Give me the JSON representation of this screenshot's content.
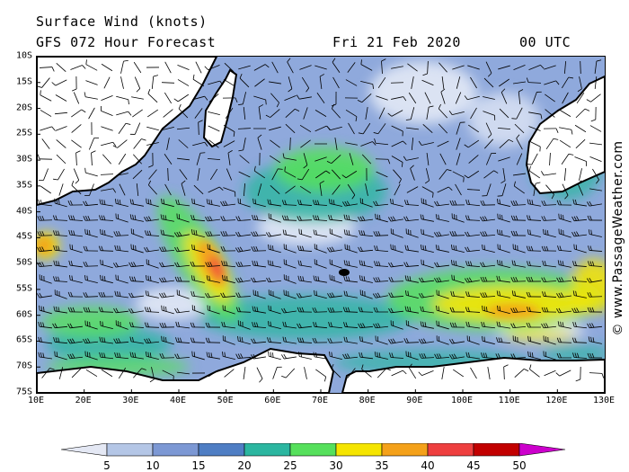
{
  "header": {
    "title": "Surface Wind (knots)",
    "model": "GFS 072 Hour Forecast",
    "date": "Fri 21 Feb 2020",
    "time": "00 UTC"
  },
  "map": {
    "lat_labels": [
      "10S",
      "15S",
      "20S",
      "25S",
      "30S",
      "35S",
      "40S",
      "45S",
      "50S",
      "55S",
      "60S",
      "65S",
      "70S",
      "75S"
    ],
    "lon_labels": [
      "10E",
      "20E",
      "30E",
      "40E",
      "50E",
      "60E",
      "70E",
      "80E",
      "90E",
      "100E",
      "110E",
      "120E",
      "130E"
    ],
    "lon_range": [
      10,
      130
    ],
    "lat_range": [
      -10,
      -75
    ]
  },
  "credit": "© www.PassageWeather.com",
  "legend": {
    "values": [
      "5",
      "10",
      "15",
      "20",
      "25",
      "30",
      "35",
      "40",
      "45",
      "50"
    ],
    "colors": [
      "#e4e8f4",
      "#b4c6e6",
      "#7c98d4",
      "#4f7ec4",
      "#2bb6a0",
      "#56e05c",
      "#f5e500",
      "#f4a11a",
      "#ee3f3f",
      "#c20000",
      "#cc00cc"
    ]
  }
}
